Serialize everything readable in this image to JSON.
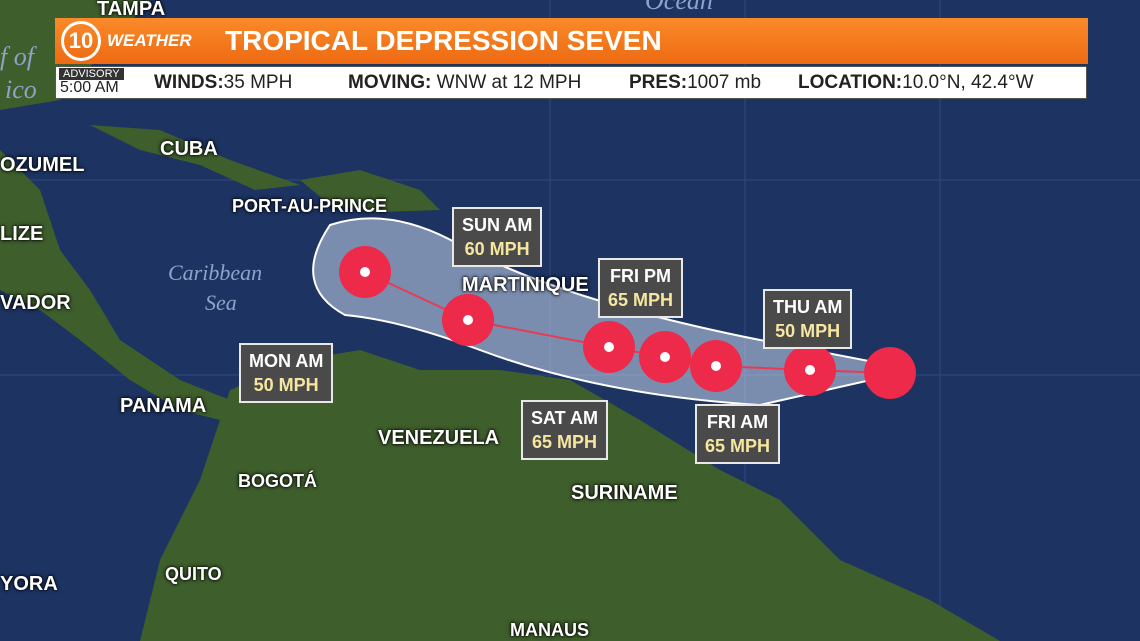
{
  "header": {
    "logo_number": "10",
    "logo_text": "WEATHER",
    "title": "TROPICAL DEPRESSION SEVEN"
  },
  "info": {
    "advisory_label": "ADVISORY",
    "advisory_time": "5:00 AM",
    "fields": [
      {
        "label": "WINDS:",
        "value": "35 MPH"
      },
      {
        "label": "MOVING:",
        "value": "WNW at 12 MPH"
      },
      {
        "label": "PRES:",
        "value": "1007 mb"
      },
      {
        "label": "LOCATION:",
        "value": "10.0°N, 42.4°W"
      }
    ]
  },
  "places": [
    "TAMPA",
    "OZUMEL",
    "CUBA",
    "PORT-AU-PRINCE",
    "LIZE",
    "VADOR",
    "MARTINIQUE",
    "PANAMA",
    "VENEZUELA",
    "BOGOTÁ",
    "SURINAME",
    "QUITO",
    "YORA",
    "MANAUS"
  ],
  "water_labels": [
    "f of",
    "ico",
    "Ocean",
    "Caribbean",
    "Sea"
  ],
  "forecast": [
    {
      "time": "THU AM",
      "wind": "50 MPH"
    },
    {
      "time": "FRI AM",
      "wind": "65 MPH"
    },
    {
      "time": "FRI PM",
      "wind": "65 MPH"
    },
    {
      "time": "SAT AM",
      "wind": "65 MPH"
    },
    {
      "time": "SUN AM",
      "wind": "60 MPH"
    },
    {
      "time": "MON AM",
      "wind": "50 MPH"
    }
  ]
}
